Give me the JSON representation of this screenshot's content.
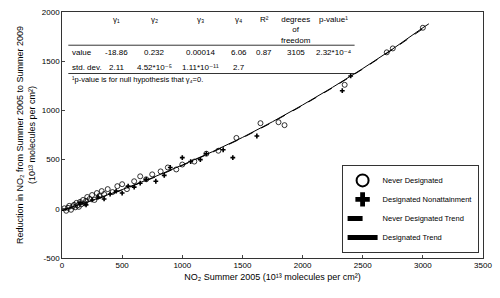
{
  "chart_data": {
    "type": "scatter",
    "x_label": "NO₂ Summer 2005 (10¹³ molecules per cm²)",
    "y_label": "Reduction in NO₂ from Summer 2005 to Summer 2009 (10¹³ molecules per cm²)",
    "xlim": [
      0,
      3500
    ],
    "xticks": [
      0,
      500,
      1000,
      1500,
      2000,
      2500,
      3000,
      3500
    ],
    "ylim": [
      -500,
      2000
    ],
    "yticks": [
      -500,
      0,
      500,
      1000,
      1500,
      2000
    ],
    "grid": false,
    "legend": "lower right",
    "series": [
      {
        "name": "Never Designated",
        "type": "scatter",
        "marker": "circle-open",
        "color": "#000000",
        "x": [
          20,
          35,
          50,
          60,
          75,
          90,
          100,
          110,
          120,
          130,
          140,
          150,
          160,
          175,
          190,
          200,
          210,
          230,
          250,
          270,
          290,
          310,
          330,
          350,
          380,
          420,
          460,
          500,
          540,
          600,
          650,
          700,
          750,
          820,
          880,
          950,
          1000,
          1100,
          1200,
          1300,
          1450,
          1650,
          1800,
          1850,
          2350,
          2700,
          2750,
          3000
        ],
        "values": [
          5,
          -20,
          10,
          30,
          -10,
          25,
          40,
          15,
          60,
          35,
          20,
          70,
          45,
          90,
          55,
          80,
          120,
          100,
          140,
          90,
          160,
          130,
          180,
          150,
          200,
          170,
          230,
          250,
          200,
          280,
          330,
          300,
          350,
          380,
          420,
          400,
          450,
          480,
          560,
          590,
          720,
          870,
          880,
          850,
          1260,
          1590,
          1630,
          1840
        ]
      },
      {
        "name": "Designated Nonattainment",
        "type": "scatter",
        "marker": "plus",
        "color": "#000000",
        "x": [
          150,
          200,
          250,
          300,
          350,
          400,
          450,
          500,
          550,
          600,
          650,
          700,
          780,
          850,
          900,
          1000,
          1070,
          1150,
          1200,
          1340,
          1420,
          1620,
          2330,
          2400
        ],
        "values": [
          60,
          40,
          90,
          120,
          100,
          150,
          180,
          160,
          230,
          220,
          260,
          300,
          280,
          340,
          420,
          520,
          480,
          500,
          560,
          600,
          520,
          740,
          1200,
          1350
        ]
      },
      {
        "name": "Never Designated Trend",
        "type": "line",
        "line_style": "dashed",
        "color": "#000000",
        "x": [
          0,
          250,
          500,
          750,
          1000,
          1250,
          1500,
          1750,
          2000,
          2250,
          2500,
          2750,
          3000,
          3050
        ],
        "values": [
          -19,
          80,
          190,
          310,
          440,
          575,
          720,
          880,
          1050,
          1230,
          1420,
          1620,
          1830,
          1870
        ]
      },
      {
        "name": "Designated Trend",
        "type": "line",
        "line_style": "solid",
        "color": "#000000",
        "x": [
          0,
          250,
          500,
          750,
          1000,
          1250,
          1500,
          1750,
          2000,
          2250,
          2500,
          2750,
          3000,
          3050
        ],
        "values": [
          -15,
          85,
          195,
          315,
          445,
          580,
          725,
          885,
          1055,
          1235,
          1425,
          1625,
          1840,
          1880
        ]
      }
    ],
    "table": {
      "columns": [
        "γ₁",
        "γ₂",
        "γ₃",
        "γ₄",
        "R²",
        "degrees of freedom",
        "p-value¹"
      ],
      "rows": [
        [
          "value",
          "-18.86",
          "0.232",
          "0.00014",
          "6.06",
          "0.87",
          "3105",
          "2.32*10⁻⁴"
        ],
        [
          "std. dev.",
          "2.11",
          "4.52*10⁻⁵",
          "1.11*10⁻¹¹",
          "2.7"
        ]
      ],
      "footnote": "¹p-value is for null hypothesis that γ₄=0."
    }
  }
}
